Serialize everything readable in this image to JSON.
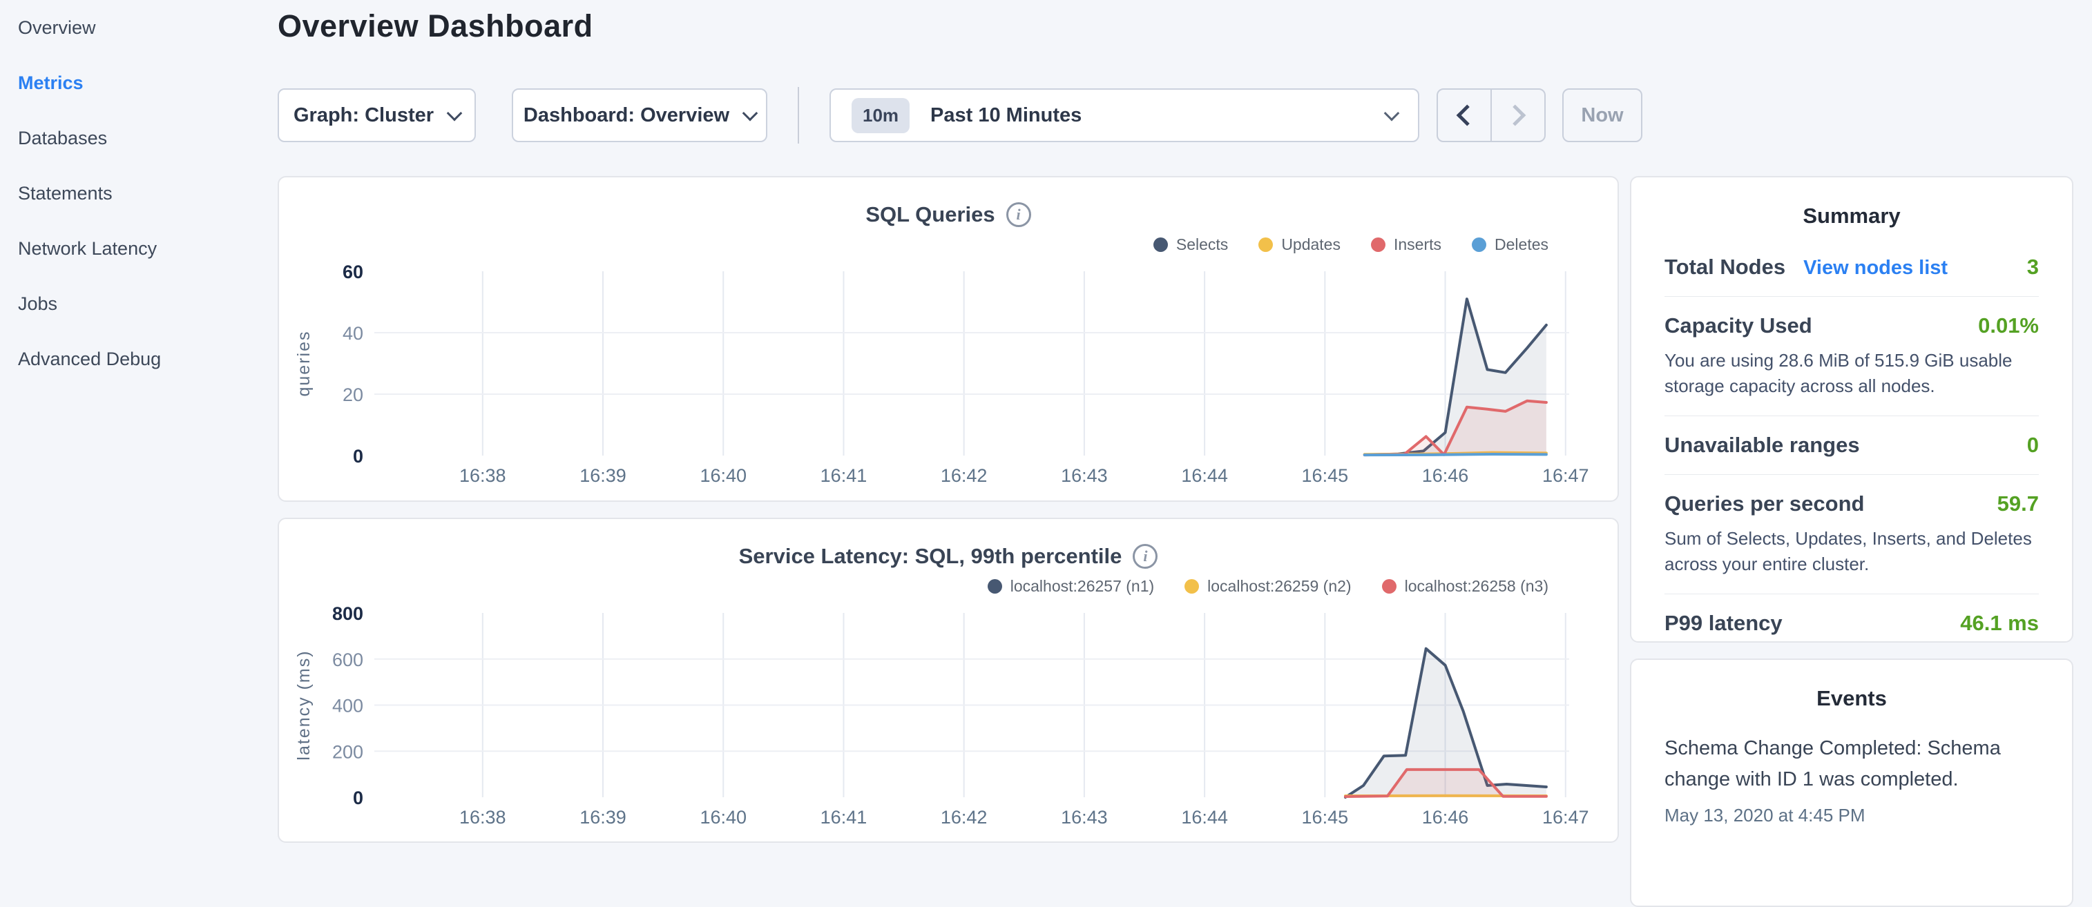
{
  "page": {
    "title": "Overview Dashboard"
  },
  "sidebar": {
    "items": [
      {
        "label": "Overview",
        "active": false
      },
      {
        "label": "Metrics",
        "active": true
      },
      {
        "label": "Databases",
        "active": false
      },
      {
        "label": "Statements",
        "active": false
      },
      {
        "label": "Network Latency",
        "active": false
      },
      {
        "label": "Jobs",
        "active": false
      },
      {
        "label": "Advanced Debug",
        "active": false
      }
    ]
  },
  "controls": {
    "graph_dropdown": "Graph: Cluster",
    "dashboard_dropdown": "Dashboard: Overview",
    "time_window_badge": "10m",
    "time_window_label": "Past 10 Minutes",
    "now_button": "Now"
  },
  "summary": {
    "title": "Summary",
    "rows": [
      {
        "label": "Total Nodes",
        "link": "View nodes list",
        "value": "3"
      },
      {
        "label": "Capacity Used",
        "value": "0.01%",
        "description": "You are using 28.6 MiB of 515.9 GiB usable storage capacity across all nodes."
      },
      {
        "label": "Unavailable ranges",
        "value": "0"
      },
      {
        "label": "Queries per second",
        "value": "59.7",
        "description": "Sum of Selects, Updates, Inserts, and Deletes across your entire cluster."
      },
      {
        "label": "P99 latency",
        "value": "46.1 ms"
      }
    ]
  },
  "events": {
    "title": "Events",
    "items": [
      {
        "text": "Schema Change Completed: Schema change with ID 1 was completed.",
        "timestamp": "May 13, 2020 at 4:45 PM"
      }
    ]
  },
  "colors": {
    "accent_blue": "#2b80f2",
    "value_green": "#54a123",
    "navy": "#475872",
    "yellow": "#f2c04a",
    "red": "#e0696b",
    "light_blue": "#5a9fd6",
    "card_border": "#e3e5ea",
    "page_bg": "#f4f6fa"
  },
  "chart_data": [
    {
      "type": "area",
      "title": "SQL Queries",
      "ylabel": "queries",
      "ylim": [
        0,
        60
      ],
      "yticks": [
        0,
        20,
        40,
        60
      ],
      "xlim": [
        37.1,
        47.03
      ],
      "grid": true,
      "legend_position": "top-right",
      "xticks": [
        {
          "t": 38,
          "label": "16:38"
        },
        {
          "t": 39,
          "label": "16:39"
        },
        {
          "t": 40,
          "label": "16:40"
        },
        {
          "t": 41,
          "label": "16:41"
        },
        {
          "t": 42,
          "label": "16:42"
        },
        {
          "t": 43,
          "label": "16:43"
        },
        {
          "t": 44,
          "label": "16:44"
        },
        {
          "t": 45,
          "label": "16:45"
        },
        {
          "t": 46,
          "label": "16:46"
        },
        {
          "t": 47,
          "label": "16:47"
        }
      ],
      "series": [
        {
          "name": "Selects",
          "color": "#475872",
          "fill": "rgba(71,88,114,0.10)",
          "points": [
            [
              45.33,
              0.3
            ],
            [
              45.6,
              0.5
            ],
            [
              45.82,
              1.5
            ],
            [
              46.0,
              7.5
            ],
            [
              46.18,
              51
            ],
            [
              46.35,
              28
            ],
            [
              46.5,
              27
            ],
            [
              46.68,
              35
            ],
            [
              46.84,
              42.5
            ]
          ]
        },
        {
          "name": "Updates",
          "color": "#f2c04a",
          "fill": "rgba(242,192,74,0.15)",
          "points": [
            [
              45.33,
              0.4
            ],
            [
              45.8,
              0.5
            ],
            [
              46.1,
              0.7
            ],
            [
              46.4,
              1.0
            ],
            [
              46.84,
              0.8
            ]
          ]
        },
        {
          "name": "Inserts",
          "color": "#e0696b",
          "fill": "rgba(224,105,107,0.12)",
          "points": [
            [
              45.33,
              0.2
            ],
            [
              45.66,
              0.4
            ],
            [
              45.84,
              6.2
            ],
            [
              45.99,
              0.3
            ],
            [
              46.18,
              15.8
            ],
            [
              46.35,
              15.1
            ],
            [
              46.5,
              14.4
            ],
            [
              46.68,
              17.8
            ],
            [
              46.84,
              17.3
            ]
          ]
        },
        {
          "name": "Deletes",
          "color": "#5a9fd6",
          "fill": "rgba(90,159,214,0.12)",
          "points": [
            [
              45.33,
              0.2
            ],
            [
              45.9,
              0.25
            ],
            [
              46.4,
              0.45
            ],
            [
              46.84,
              0.35
            ]
          ]
        }
      ]
    },
    {
      "type": "area",
      "title": "Service Latency: SQL, 99th percentile",
      "ylabel": "latency (ms)",
      "ylim": [
        0,
        800
      ],
      "yticks": [
        0,
        200,
        400,
        600,
        800
      ],
      "xlim": [
        37.1,
        47.03
      ],
      "grid": true,
      "legend_position": "top-right",
      "xticks": [
        {
          "t": 38,
          "label": "16:38"
        },
        {
          "t": 39,
          "label": "16:39"
        },
        {
          "t": 40,
          "label": "16:40"
        },
        {
          "t": 41,
          "label": "16:41"
        },
        {
          "t": 42,
          "label": "16:42"
        },
        {
          "t": 43,
          "label": "16:43"
        },
        {
          "t": 44,
          "label": "16:44"
        },
        {
          "t": 45,
          "label": "16:45"
        },
        {
          "t": 46,
          "label": "16:46"
        },
        {
          "t": 47,
          "label": "16:47"
        }
      ],
      "series": [
        {
          "name": "localhost:26257 (n1)",
          "color": "#475872",
          "fill": "rgba(71,88,114,0.10)",
          "points": [
            [
              45.17,
              0
            ],
            [
              45.32,
              51
            ],
            [
              45.49,
              179
            ],
            [
              45.67,
              182
            ],
            [
              45.84,
              645
            ],
            [
              46.0,
              573
            ],
            [
              46.15,
              373
            ],
            [
              46.35,
              51
            ],
            [
              46.51,
              57
            ],
            [
              46.84,
              45
            ]
          ]
        },
        {
          "name": "localhost:26259 (n2)",
          "color": "#f2c04a",
          "fill": "rgba(242,192,74,0.15)",
          "points": [
            [
              45.17,
              6
            ],
            [
              46.0,
              7
            ],
            [
              46.84,
              6
            ]
          ]
        },
        {
          "name": "localhost:26258 (n3)",
          "color": "#e0696b",
          "fill": "rgba(224,105,107,0.12)",
          "points": [
            [
              45.17,
              3
            ],
            [
              45.52,
              5
            ],
            [
              45.68,
              120
            ],
            [
              46.28,
              120
            ],
            [
              46.48,
              4
            ],
            [
              46.84,
              4
            ]
          ]
        }
      ]
    }
  ]
}
